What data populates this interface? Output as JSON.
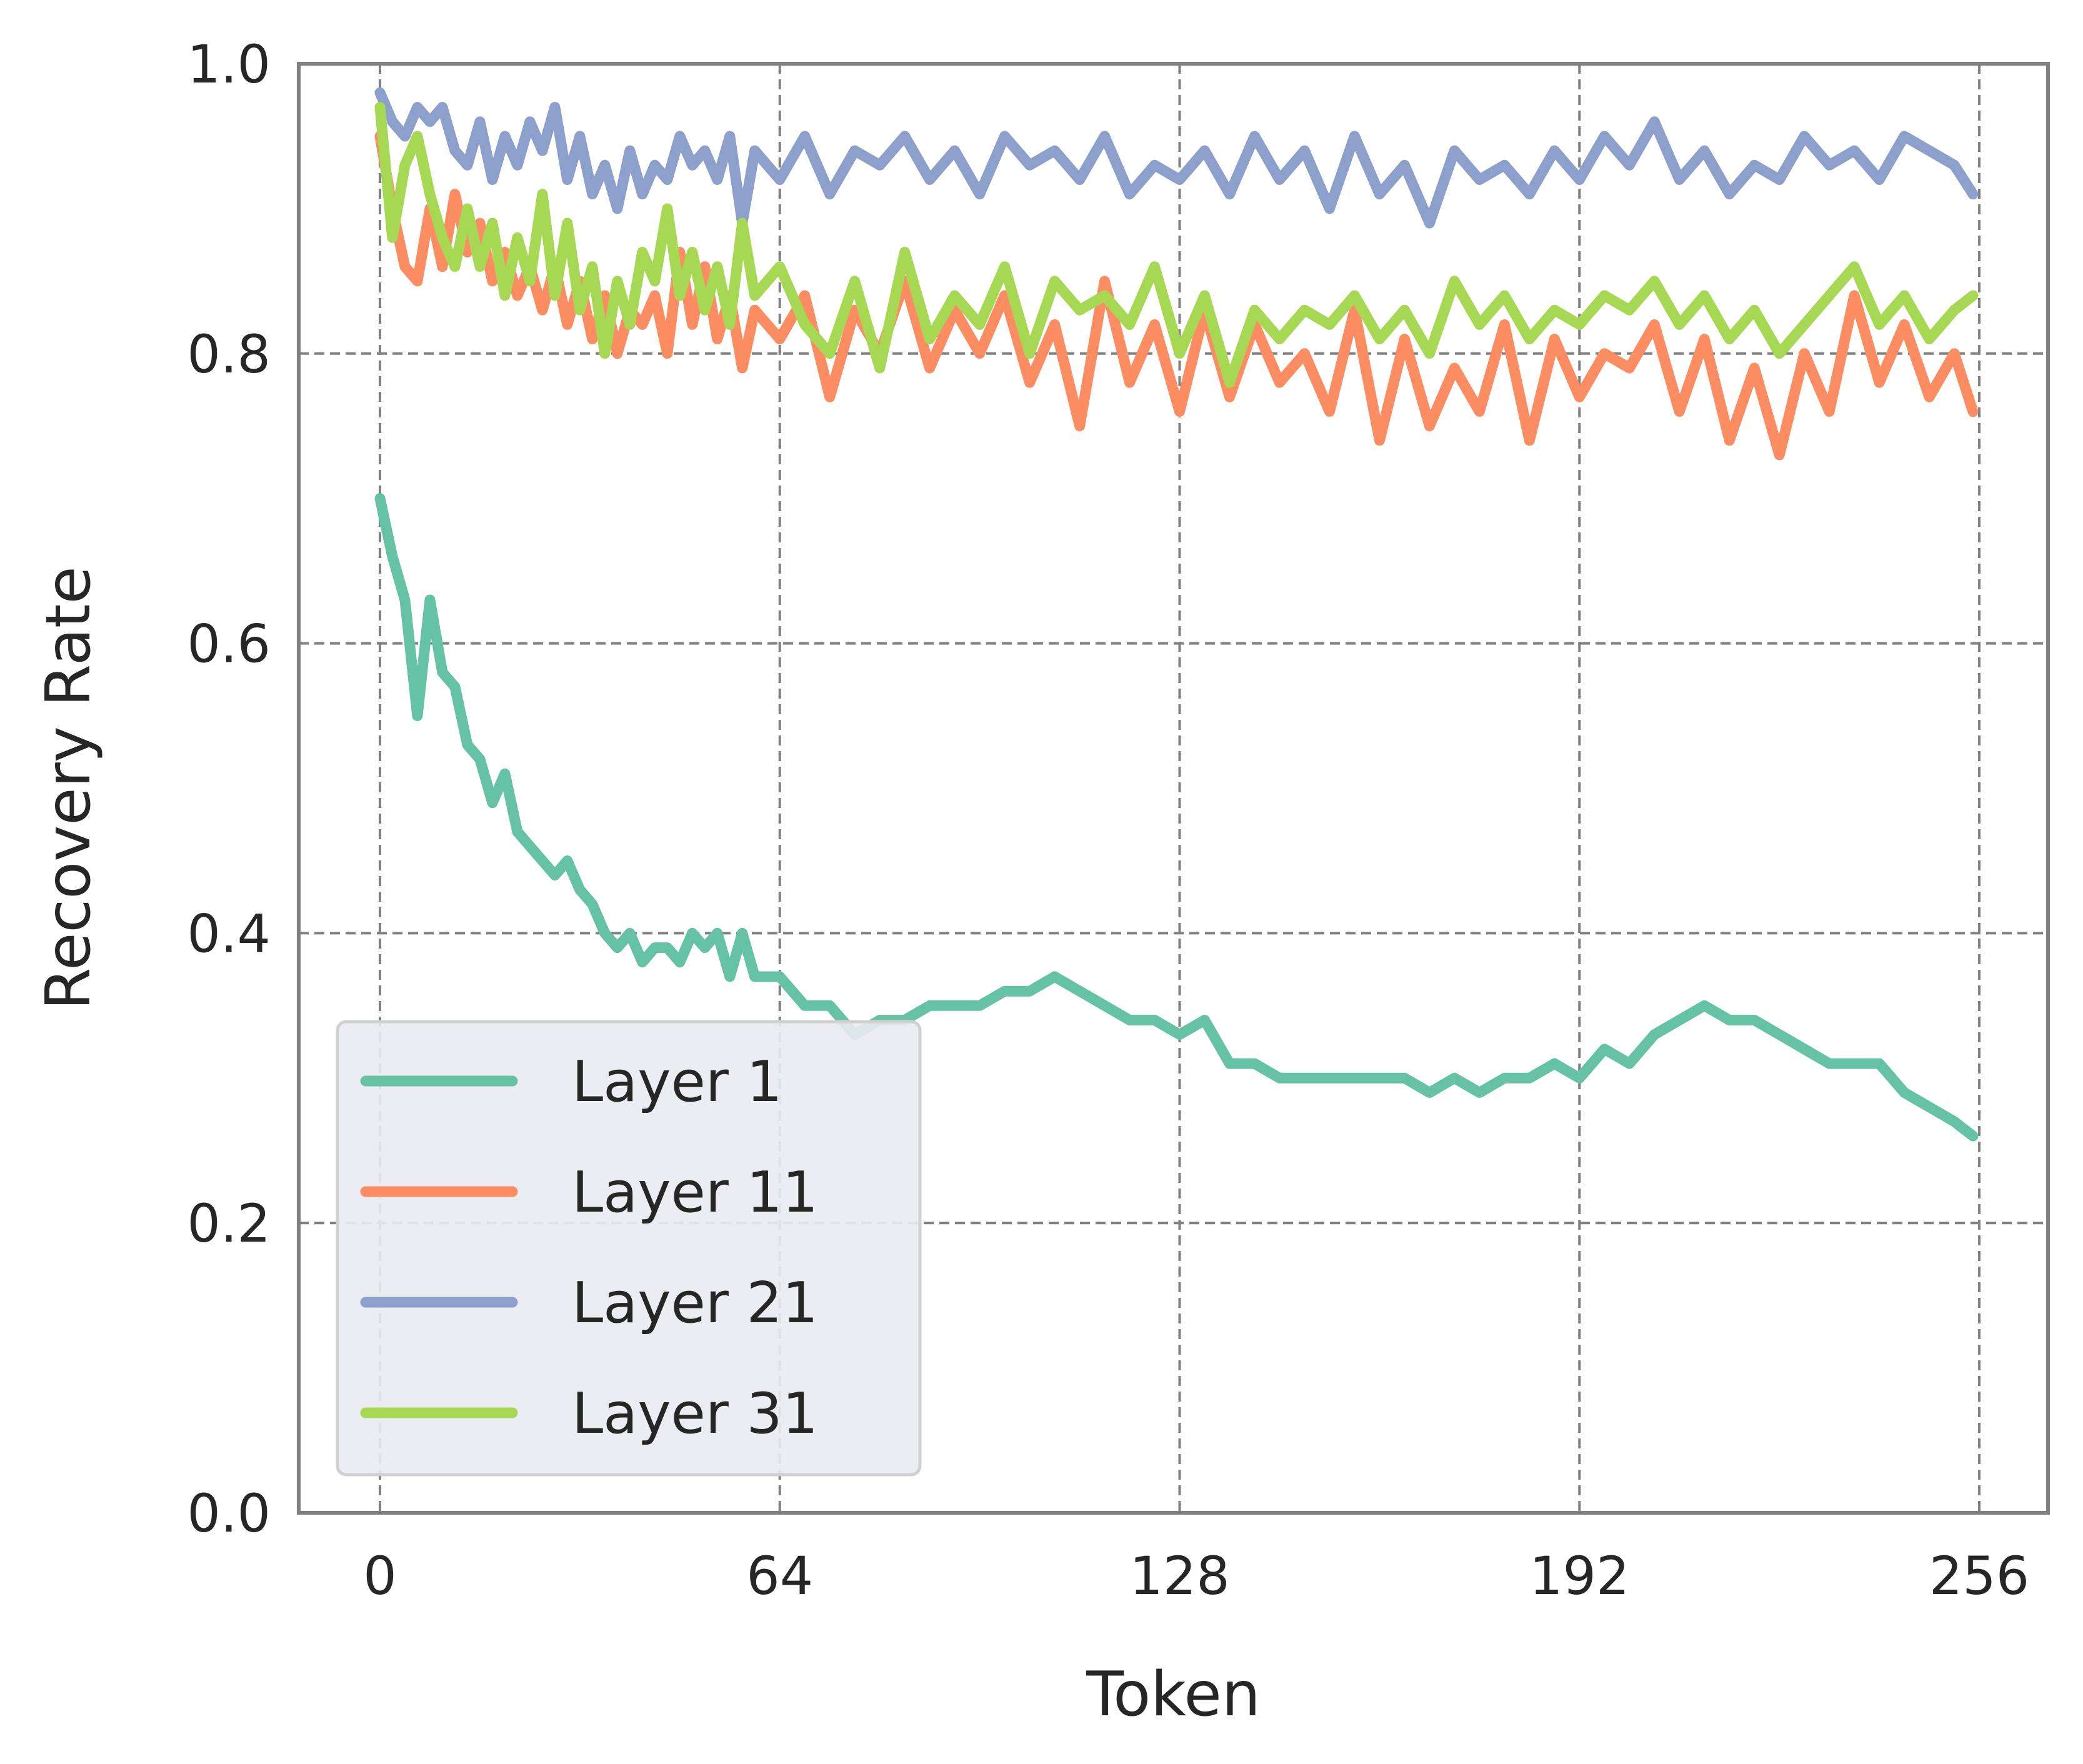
{
  "chart_data": {
    "type": "line",
    "title": "",
    "xlabel": "Token",
    "ylabel": "Recovery Rate",
    "xlim": [
      -13,
      267
    ],
    "ylim": [
      0.0,
      1.0
    ],
    "xticks": [
      0,
      64,
      128,
      192,
      256
    ],
    "xtick_labels": [
      "0",
      "64",
      "128",
      "192",
      "256"
    ],
    "yticks": [
      0.0,
      0.2,
      0.4,
      0.6,
      0.8,
      1.0
    ],
    "ytick_labels": [
      "0.0",
      "0.2",
      "0.4",
      "0.6",
      "0.8",
      "1.0"
    ],
    "grid": true,
    "grid_style": "dashed",
    "legend_position": "lower-left",
    "series": [
      {
        "name": "Layer 1",
        "color": "#66c2a5",
        "x": [
          0,
          2,
          4,
          6,
          8,
          10,
          12,
          14,
          16,
          18,
          20,
          22,
          24,
          26,
          28,
          30,
          32,
          34,
          36,
          38,
          40,
          42,
          44,
          46,
          48,
          50,
          52,
          54,
          56,
          58,
          60,
          64,
          68,
          72,
          76,
          80,
          84,
          88,
          92,
          96,
          100,
          104,
          108,
          112,
          116,
          120,
          124,
          128,
          132,
          136,
          140,
          144,
          148,
          152,
          156,
          160,
          164,
          168,
          172,
          176,
          180,
          184,
          188,
          192,
          196,
          200,
          204,
          208,
          212,
          216,
          220,
          224,
          228,
          232,
          236,
          240,
          244,
          248,
          252,
          255
        ],
        "y": [
          0.7,
          0.66,
          0.63,
          0.55,
          0.63,
          0.58,
          0.57,
          0.53,
          0.52,
          0.49,
          0.51,
          0.47,
          0.46,
          0.45,
          0.44,
          0.45,
          0.43,
          0.42,
          0.4,
          0.39,
          0.4,
          0.38,
          0.39,
          0.39,
          0.38,
          0.4,
          0.39,
          0.4,
          0.37,
          0.4,
          0.37,
          0.37,
          0.35,
          0.35,
          0.33,
          0.34,
          0.34,
          0.35,
          0.35,
          0.35,
          0.36,
          0.36,
          0.37,
          0.36,
          0.35,
          0.34,
          0.34,
          0.33,
          0.34,
          0.31,
          0.31,
          0.3,
          0.3,
          0.3,
          0.3,
          0.3,
          0.3,
          0.29,
          0.3,
          0.29,
          0.3,
          0.3,
          0.31,
          0.3,
          0.32,
          0.31,
          0.33,
          0.34,
          0.35,
          0.34,
          0.34,
          0.33,
          0.32,
          0.31,
          0.31,
          0.31,
          0.29,
          0.28,
          0.27,
          0.26
        ]
      },
      {
        "name": "Layer 11",
        "color": "#fc8d62",
        "x": [
          0,
          2,
          4,
          6,
          8,
          10,
          12,
          14,
          16,
          18,
          20,
          22,
          24,
          26,
          28,
          30,
          32,
          34,
          36,
          38,
          40,
          42,
          44,
          46,
          48,
          50,
          52,
          54,
          56,
          58,
          60,
          64,
          68,
          72,
          76,
          80,
          84,
          88,
          92,
          96,
          100,
          104,
          108,
          112,
          116,
          120,
          124,
          128,
          132,
          136,
          140,
          144,
          148,
          152,
          156,
          160,
          164,
          168,
          172,
          176,
          180,
          184,
          188,
          192,
          196,
          200,
          204,
          208,
          212,
          216,
          220,
          224,
          228,
          232,
          236,
          240,
          244,
          248,
          252,
          255
        ],
        "y": [
          0.95,
          0.9,
          0.86,
          0.85,
          0.9,
          0.86,
          0.91,
          0.87,
          0.89,
          0.85,
          0.87,
          0.84,
          0.86,
          0.83,
          0.86,
          0.82,
          0.85,
          0.81,
          0.84,
          0.8,
          0.83,
          0.82,
          0.84,
          0.8,
          0.87,
          0.82,
          0.86,
          0.81,
          0.84,
          0.79,
          0.83,
          0.81,
          0.84,
          0.77,
          0.83,
          0.8,
          0.85,
          0.79,
          0.83,
          0.8,
          0.84,
          0.78,
          0.82,
          0.75,
          0.85,
          0.78,
          0.82,
          0.76,
          0.83,
          0.77,
          0.82,
          0.78,
          0.8,
          0.76,
          0.83,
          0.74,
          0.81,
          0.75,
          0.79,
          0.76,
          0.82,
          0.74,
          0.81,
          0.77,
          0.8,
          0.79,
          0.82,
          0.76,
          0.81,
          0.74,
          0.79,
          0.73,
          0.8,
          0.76,
          0.84,
          0.78,
          0.82,
          0.77,
          0.8,
          0.76
        ]
      },
      {
        "name": "Layer 21",
        "color": "#8da0cb",
        "x": [
          0,
          2,
          4,
          6,
          8,
          10,
          12,
          14,
          16,
          18,
          20,
          22,
          24,
          26,
          28,
          30,
          32,
          34,
          36,
          38,
          40,
          42,
          44,
          46,
          48,
          50,
          52,
          54,
          56,
          58,
          60,
          64,
          68,
          72,
          76,
          80,
          84,
          88,
          92,
          96,
          100,
          104,
          108,
          112,
          116,
          120,
          124,
          128,
          132,
          136,
          140,
          144,
          148,
          152,
          156,
          160,
          164,
          168,
          172,
          176,
          180,
          184,
          188,
          192,
          196,
          200,
          204,
          208,
          212,
          216,
          220,
          224,
          228,
          232,
          236,
          240,
          244,
          248,
          252,
          255
        ],
        "y": [
          0.98,
          0.96,
          0.95,
          0.97,
          0.96,
          0.97,
          0.94,
          0.93,
          0.96,
          0.92,
          0.95,
          0.93,
          0.96,
          0.94,
          0.97,
          0.92,
          0.95,
          0.91,
          0.93,
          0.9,
          0.94,
          0.91,
          0.93,
          0.92,
          0.95,
          0.93,
          0.94,
          0.92,
          0.95,
          0.89,
          0.94,
          0.92,
          0.95,
          0.91,
          0.94,
          0.93,
          0.95,
          0.92,
          0.94,
          0.91,
          0.95,
          0.93,
          0.94,
          0.92,
          0.95,
          0.91,
          0.93,
          0.92,
          0.94,
          0.91,
          0.95,
          0.92,
          0.94,
          0.9,
          0.95,
          0.91,
          0.93,
          0.89,
          0.94,
          0.92,
          0.93,
          0.91,
          0.94,
          0.92,
          0.95,
          0.93,
          0.96,
          0.92,
          0.94,
          0.91,
          0.93,
          0.92,
          0.95,
          0.93,
          0.94,
          0.92,
          0.95,
          0.94,
          0.93,
          0.91
        ]
      },
      {
        "name": "Layer 31",
        "color": "#a6d854",
        "x": [
          0,
          2,
          4,
          6,
          8,
          10,
          12,
          14,
          16,
          18,
          20,
          22,
          24,
          26,
          28,
          30,
          32,
          34,
          36,
          38,
          40,
          42,
          44,
          46,
          48,
          50,
          52,
          54,
          56,
          58,
          60,
          64,
          68,
          72,
          76,
          80,
          84,
          88,
          92,
          96,
          100,
          104,
          108,
          112,
          116,
          120,
          124,
          128,
          132,
          136,
          140,
          144,
          148,
          152,
          156,
          160,
          164,
          168,
          172,
          176,
          180,
          184,
          188,
          192,
          196,
          200,
          204,
          208,
          212,
          216,
          220,
          224,
          228,
          232,
          236,
          240,
          244,
          248,
          252,
          255
        ],
        "y": [
          0.97,
          0.88,
          0.93,
          0.95,
          0.91,
          0.88,
          0.86,
          0.9,
          0.86,
          0.89,
          0.84,
          0.88,
          0.85,
          0.91,
          0.84,
          0.89,
          0.83,
          0.86,
          0.8,
          0.85,
          0.82,
          0.87,
          0.85,
          0.9,
          0.84,
          0.87,
          0.83,
          0.86,
          0.82,
          0.89,
          0.84,
          0.86,
          0.82,
          0.8,
          0.85,
          0.79,
          0.87,
          0.81,
          0.84,
          0.82,
          0.86,
          0.8,
          0.85,
          0.83,
          0.84,
          0.82,
          0.86,
          0.8,
          0.84,
          0.78,
          0.83,
          0.81,
          0.83,
          0.82,
          0.84,
          0.81,
          0.83,
          0.8,
          0.85,
          0.82,
          0.84,
          0.81,
          0.83,
          0.82,
          0.84,
          0.83,
          0.85,
          0.82,
          0.84,
          0.81,
          0.83,
          0.8,
          0.82,
          0.84,
          0.86,
          0.82,
          0.84,
          0.81,
          0.83,
          0.84
        ]
      }
    ]
  }
}
